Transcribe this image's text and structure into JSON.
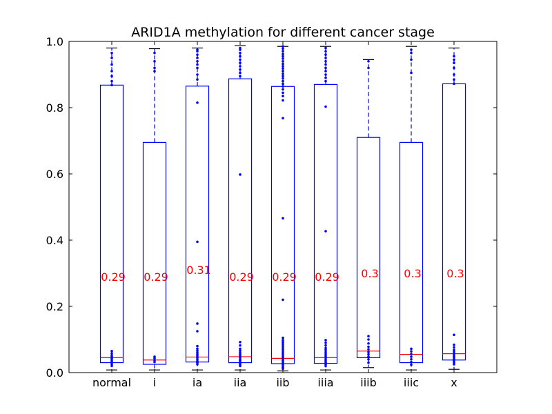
{
  "chart_data": {
    "type": "box",
    "title": "ARID1A methylation for different cancer stage",
    "xlabel": "",
    "ylabel": "",
    "ylim": [
      0.0,
      1.0
    ],
    "yticks": [
      "0.0",
      "0.2",
      "0.4",
      "0.6",
      "0.8",
      "1.0"
    ],
    "grid": false,
    "colors": {
      "box": "#0000ff",
      "median": "#ff0000",
      "label": "#ff0000",
      "axes": "#000000"
    },
    "categories": [
      "normal",
      "i",
      "ia",
      "iia",
      "iib",
      "iiia",
      "iiib",
      "iiic",
      "x"
    ],
    "median_labels": [
      "0.29",
      "0.29",
      "0.31",
      "0.29",
      "0.29",
      "0.29",
      "0.3",
      "0.3",
      "0.3"
    ],
    "label_values": [
      0.29,
      0.29,
      0.31,
      0.29,
      0.29,
      0.29,
      0.3,
      0.3,
      0.3
    ],
    "boxes": [
      {
        "q1": 0.03,
        "median": 0.045,
        "q3": 0.868,
        "whisker_low": 0.008,
        "whisker_high": 0.98,
        "fliers": [
          0.965,
          0.95,
          0.93,
          0.91,
          0.895,
          0.88,
          0.868,
          0.065,
          0.058,
          0.052,
          0.048,
          0.043,
          0.038,
          0.034,
          0.03,
          0.025,
          0.02
        ]
      },
      {
        "q1": 0.025,
        "median": 0.038,
        "q3": 0.695,
        "whisker_low": 0.008,
        "whisker_high": 0.978,
        "fliers": [
          0.965,
          0.94,
          0.92,
          0.91,
          0.048,
          0.043,
          0.037,
          0.032
        ]
      },
      {
        "q1": 0.032,
        "median": 0.047,
        "q3": 0.865,
        "whisker_low": 0.008,
        "whisker_high": 0.98,
        "fliers": [
          0.975,
          0.97,
          0.96,
          0.95,
          0.94,
          0.93,
          0.92,
          0.9,
          0.885,
          0.815,
          0.395,
          0.148,
          0.125,
          0.08,
          0.072,
          0.066,
          0.06,
          0.055,
          0.05,
          0.045,
          0.04,
          0.035,
          0.03,
          0.025
        ]
      },
      {
        "q1": 0.03,
        "median": 0.048,
        "q3": 0.887,
        "whisker_low": 0.008,
        "whisker_high": 0.987,
        "fliers": [
          0.98,
          0.975,
          0.965,
          0.955,
          0.945,
          0.935,
          0.925,
          0.915,
          0.905,
          0.895,
          0.598,
          0.092,
          0.082,
          0.072,
          0.066,
          0.06,
          0.055,
          0.05,
          0.045,
          0.04,
          0.036,
          0.032,
          0.028,
          0.024,
          0.02
        ]
      },
      {
        "q1": 0.027,
        "median": 0.043,
        "q3": 0.864,
        "whisker_low": 0.005,
        "whisker_high": 0.985,
        "fliers": [
          0.985,
          0.978,
          0.97,
          0.962,
          0.955,
          0.948,
          0.94,
          0.932,
          0.925,
          0.918,
          0.91,
          0.902,
          0.895,
          0.888,
          0.88,
          0.872,
          0.864,
          0.855,
          0.845,
          0.835,
          0.822,
          0.768,
          0.466,
          0.22,
          0.105,
          0.098,
          0.092,
          0.086,
          0.08,
          0.074,
          0.068,
          0.062,
          0.056,
          0.05,
          0.045,
          0.04,
          0.036,
          0.032,
          0.028,
          0.024,
          0.02,
          0.016,
          0.012
        ]
      },
      {
        "q1": 0.028,
        "median": 0.045,
        "q3": 0.87,
        "whisker_low": 0.008,
        "whisker_high": 0.985,
        "fliers": [
          0.98,
          0.97,
          0.96,
          0.95,
          0.94,
          0.93,
          0.92,
          0.91,
          0.9,
          0.89,
          0.88,
          0.803,
          0.427,
          0.098,
          0.09,
          0.082,
          0.074,
          0.068,
          0.062,
          0.056,
          0.05,
          0.045,
          0.04,
          0.035,
          0.03,
          0.025,
          0.02
        ]
      },
      {
        "q1": 0.045,
        "median": 0.065,
        "q3": 0.71,
        "whisker_low": 0.015,
        "whisker_high": 0.945,
        "fliers": [
          0.94,
          0.92,
          0.11,
          0.1,
          0.088,
          0.078,
          0.07,
          0.062,
          0.055,
          0.048,
          0.04,
          0.03
        ]
      },
      {
        "q1": 0.03,
        "median": 0.055,
        "q3": 0.695,
        "whisker_low": 0.008,
        "whisker_high": 0.985,
        "fliers": [
          0.975,
          0.965,
          0.945,
          0.905,
          0.072,
          0.064,
          0.056,
          0.048,
          0.04,
          0.032,
          0.024
        ]
      },
      {
        "q1": 0.038,
        "median": 0.057,
        "q3": 0.872,
        "whisker_low": 0.01,
        "whisker_high": 0.98,
        "fliers": [
          0.955,
          0.945,
          0.935,
          0.92,
          0.9,
          0.885,
          0.872,
          0.114,
          0.084,
          0.076,
          0.068,
          0.062,
          0.056,
          0.05,
          0.045,
          0.04,
          0.035,
          0.03,
          0.025
        ]
      }
    ]
  }
}
